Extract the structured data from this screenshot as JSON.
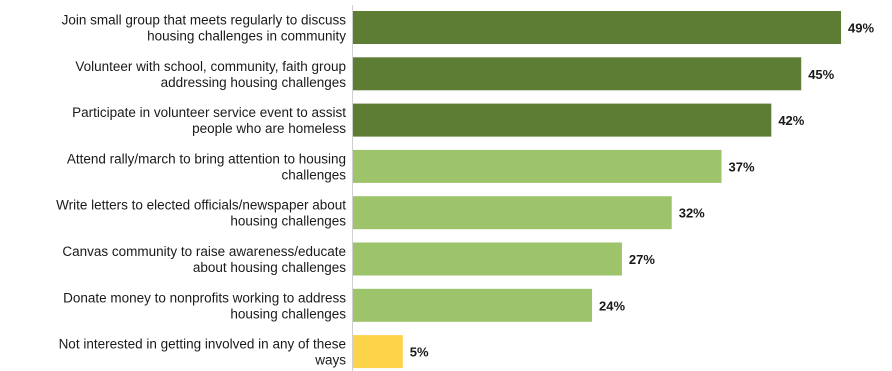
{
  "chart_data": {
    "type": "bar",
    "orientation": "horizontal",
    "categories": [
      [
        "Join small group that meets regularly to discuss",
        "housing challenges in community"
      ],
      [
        "Volunteer with school, community,  faith group",
        "addressing housing challenges"
      ],
      [
        "Participate in volunteer service event to assist",
        "people who are homeless"
      ],
      [
        "Attend rally/march to bring attention to housing",
        "challenges"
      ],
      [
        "Write letters to elected officials/newspaper about",
        "housing challenges"
      ],
      [
        "Canvas community to raise awareness/educate",
        "about housing challenges"
      ],
      [
        "Donate money to nonprofits working to address",
        "housing challenges"
      ],
      [
        "Not interested in getting involved in any of these",
        "ways"
      ]
    ],
    "values": [
      49,
      45,
      42,
      37,
      32,
      27,
      24,
      5
    ],
    "value_labels": [
      "49%",
      "45%",
      "42%",
      "37%",
      "32%",
      "27%",
      "24%",
      "5%"
    ],
    "bar_colors": [
      "#5e7d34",
      "#5e7d34",
      "#5e7d34",
      "#9dc36b",
      "#9dc36b",
      "#9dc36b",
      "#9dc36b",
      "#fdd34a"
    ],
    "xlim": [
      0,
      50
    ],
    "grid": false,
    "legend": "none"
  }
}
